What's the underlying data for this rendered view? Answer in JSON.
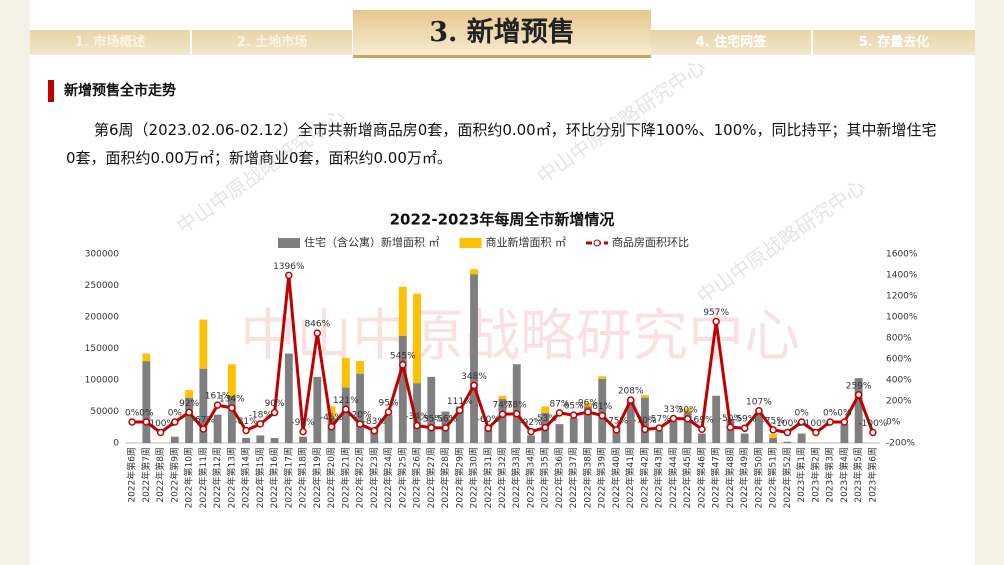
{
  "header": {
    "tabs": [
      "1. 市场概述",
      "2. 土地市场",
      "3. 新增预售",
      "4. 住宅网签",
      "5. 存量去化"
    ]
  },
  "section_title": "新增预售全市走势",
  "paragraph": "第6周（2023.02.06-02.12）全市共新增商品房0套，面积约0.00㎡，环比分别下降100%、100%，同比持平；其中新增住宅0套，面积约0.00万㎡；新增商业0套，面积约0.00万㎡。",
  "watermark": "中山中原战略研究中心",
  "chart_data": {
    "type": "bar",
    "title": "2022-2023年每周全市新增情况",
    "categories": [
      "2022年第6周",
      "2022年第7周",
      "2022年第8周",
      "2022年第9周",
      "2022年第10周",
      "2022年第11周",
      "2022年第12周",
      "2022年第13周",
      "2022年第14周",
      "2022年第15周",
      "2022年第16周",
      "2022年第17周",
      "2022年第18周",
      "2022年第19周",
      "2022年第20周",
      "2022年第21周",
      "2022年第22周",
      "2022年第23周",
      "2022年第24周",
      "2022年第25周",
      "2022年第26周",
      "2022年第27周",
      "2022年第28周",
      "2022年第29周",
      "2022年第30周",
      "2022年第31周",
      "2022年第32周",
      "2022年第33周",
      "2022年第34周",
      "2022年第35周",
      "2022年第36周",
      "2022年第37周",
      "2022年第38周",
      "2022年第39周",
      "2022年第40周",
      "2022年第41周",
      "2022年第42周",
      "2022年第43周",
      "2022年第44周",
      "2022年第45周",
      "2022年第46周",
      "2022年第47周",
      "2022年第48周",
      "2022年第49周",
      "2022年第50周",
      "2022年第51周",
      "2022年第52周",
      "2023年第1周",
      "2023年第2周",
      "2023年第3周",
      "2023年第4周",
      "2023年第5周",
      "2023年第6周"
    ],
    "series": [
      {
        "name": "住宅（含公寓）新增面积 ㎡",
        "color": "#7f7f7f",
        "stack": true,
        "values": [
          0,
          130000,
          0,
          10000,
          72000,
          118000,
          45000,
          75000,
          8000,
          12000,
          8000,
          142000,
          10000,
          105000,
          40000,
          88000,
          110000,
          22000,
          45000,
          170000,
          95000,
          105000,
          50000,
          58000,
          268000,
          28000,
          70000,
          125000,
          12000,
          48000,
          30000,
          40000,
          58000,
          102000,
          25000,
          70000,
          72000,
          20000,
          35000,
          50000,
          15000,
          75000,
          38000,
          15000,
          48000,
          8000,
          2000,
          15000,
          0,
          0,
          30000,
          103000,
          0
        ]
      },
      {
        "name": "商业新增面积 ㎡",
        "color": "#ffc000",
        "stack": true,
        "values": [
          0,
          12000,
          0,
          0,
          12000,
          78000,
          0,
          50000,
          0,
          0,
          0,
          0,
          0,
          0,
          18000,
          47000,
          20000,
          0,
          0,
          78000,
          142000,
          0,
          0,
          0,
          8000,
          0,
          5000,
          0,
          0,
          10000,
          0,
          0,
          6000,
          4000,
          0,
          0,
          4000,
          0,
          0,
          5000,
          0,
          0,
          0,
          0,
          0,
          6000,
          0,
          0,
          0,
          0,
          0,
          0,
          0
        ]
      },
      {
        "name": "商品房面积环比",
        "color": "#c00000",
        "axis": "y2",
        "values": [
          0,
          0,
          -100,
          0,
          92,
          -67,
          161,
          134,
          -81,
          -18,
          90,
          1396,
          -92,
          846,
          -45,
          121,
          -20,
          -83,
          95,
          545,
          -34,
          -55,
          -56,
          111,
          348,
          -60,
          74,
          78,
          -92,
          -53,
          87,
          65,
          96,
          61,
          -75,
          208,
          -70,
          -57,
          33,
          30,
          -69,
          957,
          -50,
          -59,
          107,
          -75,
          -100,
          0,
          -100,
          0,
          0,
          259,
          -100
        ],
        "value_labels": [
          "0%",
          "0%",
          "-100%",
          "0%",
          "92%",
          "-67%",
          "161%",
          "134%",
          "-81%",
          "-18%",
          "90%",
          "1396%",
          "-92%",
          "846%",
          "-45%",
          "121%",
          "-20%",
          "-83%",
          "95%",
          "545%",
          "-34%",
          "-55%",
          "-56%",
          "111%",
          "348%",
          "-60%",
          "74%",
          "78%",
          "-92%",
          "-53%",
          "87%",
          "65%",
          "96%",
          "61%",
          "-75%",
          "208%",
          "-70%",
          "-57%",
          "33%",
          "30%",
          "-69%",
          "957%",
          "-50%",
          "-59%",
          "107%",
          "-75%",
          "-100%",
          "0%",
          "-100%",
          "0%",
          "0%",
          "259%",
          "-100%"
        ]
      }
    ],
    "ylim": [
      0,
      300000
    ],
    "yticks": [
      0,
      50000,
      100000,
      150000,
      200000,
      250000,
      300000
    ],
    "y2lim": [
      -200,
      1600
    ],
    "y2ticks": [
      {
        "value": -200,
        "label": "-200%"
      },
      {
        "value": 0,
        "label": "0%"
      },
      {
        "value": 200,
        "label": "200%"
      },
      {
        "value": 400,
        "label": "400%"
      },
      {
        "value": 600,
        "label": "600%"
      },
      {
        "value": 800,
        "label": "800%"
      },
      {
        "value": 1000,
        "label": "1000%"
      },
      {
        "value": 1200,
        "label": "1200%"
      },
      {
        "value": 1400,
        "label": "1400%"
      },
      {
        "value": 1600,
        "label": "1600%"
      }
    ],
    "grid": false,
    "legend": "top"
  }
}
